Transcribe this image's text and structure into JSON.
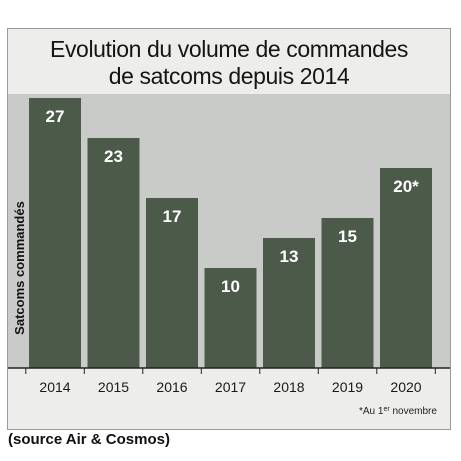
{
  "chart_data": {
    "type": "bar",
    "title_lines": [
      "Evolution du volume de commandes",
      "de satcoms depuis 2014"
    ],
    "ylabel": "Satcoms commandés",
    "xlabel": "",
    "categories": [
      "2014",
      "2015",
      "2016",
      "2017",
      "2018",
      "2019",
      "2020"
    ],
    "values": [
      27,
      23,
      17,
      10,
      13,
      15,
      20
    ],
    "value_labels": [
      "27",
      "23",
      "17",
      "10",
      "13",
      "15",
      "20*"
    ],
    "ylim": [
      0,
      28
    ],
    "grid": false,
    "footnote": "*Au 1er novembre",
    "colors": {
      "bar": "#4c5a4a",
      "plot_background": "#c9cbc8",
      "panel_background": "#ededeb",
      "label_text": "#ffffff"
    }
  },
  "source_caption": "(source Air & Cosmos)"
}
